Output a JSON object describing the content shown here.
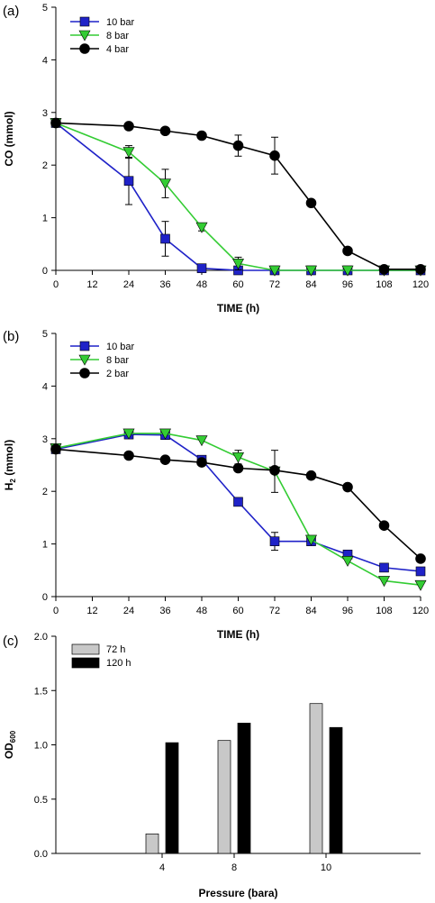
{
  "chart_data": [
    {
      "panel_label": "(a)",
      "type": "line",
      "xlabel": "TIME (h)",
      "ylabel": "CO (mmol)",
      "xlim": [
        0,
        120
      ],
      "ylim": [
        0,
        5
      ],
      "xticks": [
        0,
        12,
        24,
        36,
        48,
        60,
        72,
        84,
        96,
        108,
        120
      ],
      "yticks": [
        0,
        1,
        2,
        3,
        4,
        5
      ],
      "grid": false,
      "legend_position": "top-left",
      "x": [
        0,
        24,
        36,
        48,
        60,
        72,
        84,
        96,
        108,
        120
      ],
      "series": [
        {
          "name": "10 bar",
          "marker": "square",
          "color": "#1f22c8",
          "values": [
            2.8,
            1.7,
            0.6,
            0.04,
            0.0,
            0.0,
            0.0,
            0.0,
            0.0,
            0.0
          ],
          "errors": [
            0.0,
            0.45,
            0.33,
            0.0,
            0.0,
            0.0,
            0.0,
            0.0,
            0.0,
            0.0
          ]
        },
        {
          "name": "8 bar",
          "marker": "triangle-down",
          "color": "#33cc33",
          "values": [
            2.8,
            2.25,
            1.65,
            0.82,
            0.13,
            0.0,
            0.0,
            0.0,
            0.0,
            0.0
          ],
          "errors": [
            0.0,
            0.12,
            0.27,
            0.07,
            0.12,
            0.0,
            0.0,
            0.0,
            0.0,
            0.0
          ]
        },
        {
          "name": "4 bar",
          "marker": "circle",
          "color": "#000000",
          "values": [
            2.8,
            2.74,
            2.65,
            2.56,
            2.37,
            2.18,
            1.28,
            0.37,
            0.02,
            0.02
          ],
          "errors": [
            0.0,
            0.0,
            0.0,
            0.0,
            0.2,
            0.35,
            0.0,
            0.0,
            0.0,
            0.0
          ]
        }
      ]
    },
    {
      "panel_label": "(b)",
      "type": "line",
      "xlabel": "TIME (h)",
      "ylabel_main": "H",
      "ylabel_sub": "2",
      "ylabel_rest": " (mmol)",
      "xlim": [
        0,
        120
      ],
      "ylim": [
        0,
        5
      ],
      "xticks": [
        0,
        12,
        24,
        36,
        48,
        60,
        72,
        84,
        96,
        108,
        120
      ],
      "yticks": [
        0,
        1,
        2,
        3,
        4,
        5
      ],
      "grid": false,
      "legend_position": "top-left",
      "x": [
        0,
        24,
        36,
        48,
        60,
        72,
        84,
        96,
        108,
        120
      ],
      "series": [
        {
          "name": "10 bar",
          "marker": "square",
          "color": "#1f22c8",
          "values": [
            2.8,
            3.08,
            3.07,
            2.6,
            1.8,
            1.05,
            1.05,
            0.8,
            0.55,
            0.48
          ],
          "errors": [
            0.0,
            0.0,
            0.0,
            0.0,
            0.0,
            0.17,
            0.0,
            0.0,
            0.0,
            0.0
          ]
        },
        {
          "name": "8 bar",
          "marker": "triangle-down",
          "color": "#33cc33",
          "values": [
            2.82,
            3.1,
            3.1,
            2.97,
            2.65,
            2.38,
            1.08,
            0.68,
            0.3,
            0.22
          ],
          "errors": [
            0.0,
            0.0,
            0.0,
            0.0,
            0.13,
            0.4,
            0.0,
            0.0,
            0.0,
            0.0
          ]
        },
        {
          "name": "2 bar",
          "marker": "circle",
          "color": "#000000",
          "values": [
            2.8,
            2.68,
            2.6,
            2.55,
            2.44,
            2.4,
            2.3,
            2.08,
            1.35,
            0.72
          ],
          "errors": [
            0.0,
            0.0,
            0.0,
            0.0,
            0.0,
            0.0,
            0.0,
            0.0,
            0.0,
            0.0
          ]
        }
      ]
    },
    {
      "panel_label": "(c)",
      "type": "bar",
      "xlabel": "Pressure (bara)",
      "ylabel_main": "OD",
      "ylabel_sub": "600",
      "ylim": [
        0,
        2.0
      ],
      "yticks": [
        "0.0",
        "0.5",
        "1.0",
        "1.5",
        "2.0"
      ],
      "grid": false,
      "legend_position": "top-left",
      "categories": [
        "4",
        "8",
        "10"
      ],
      "series": [
        {
          "name": "72 h",
          "color": "#c8c8c8",
          "values": [
            0.18,
            1.04,
            1.38
          ]
        },
        {
          "name": "120 h",
          "color": "#000000",
          "values": [
            1.02,
            1.2,
            1.16
          ]
        }
      ]
    }
  ]
}
